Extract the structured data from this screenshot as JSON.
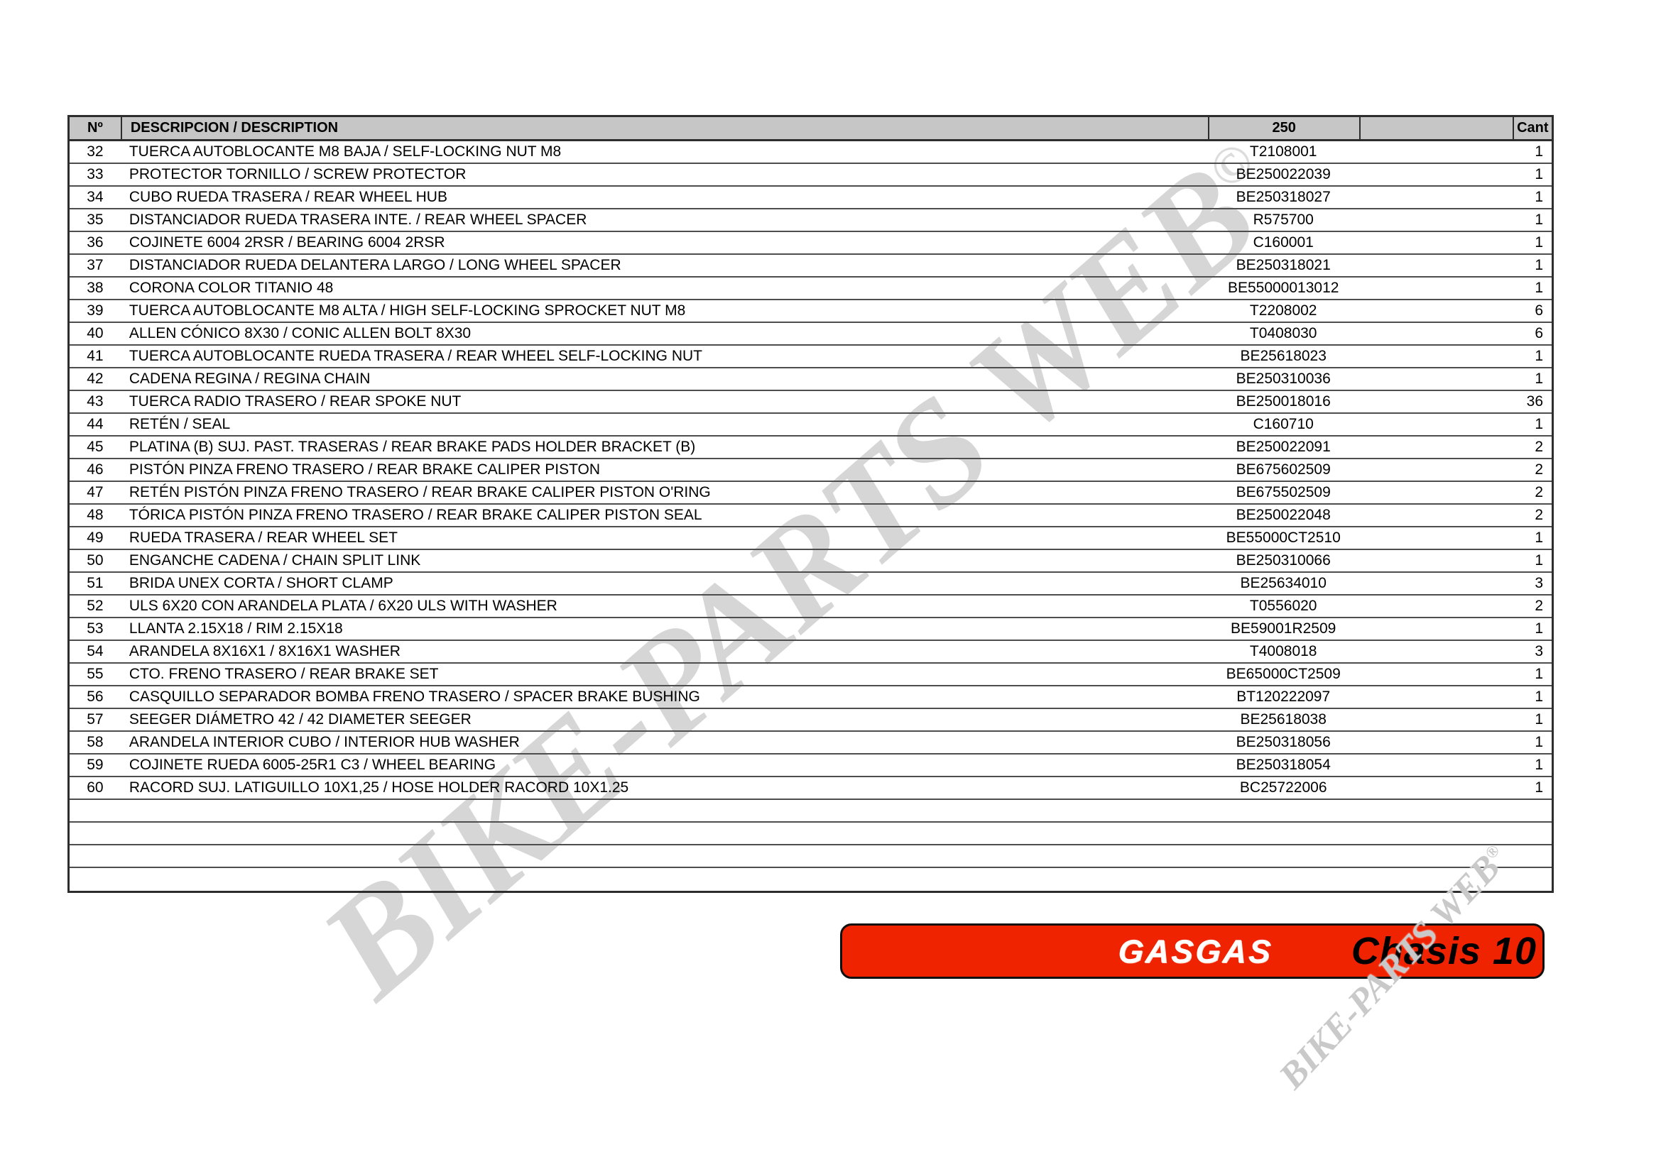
{
  "table": {
    "headers": {
      "num": "Nº",
      "description": "DESCRIPCION / DESCRIPTION",
      "part": "250",
      "extra": "",
      "qty": "Cant"
    },
    "empty_row_count": 4,
    "rows": [
      {
        "num": "32",
        "description": "TUERCA AUTOBLOCANTE M8 BAJA / SELF-LOCKING NUT M8",
        "part": "T2108001",
        "qty": "1"
      },
      {
        "num": "33",
        "description": "PROTECTOR TORNILLO / SCREW PROTECTOR",
        "part": "BE250022039",
        "qty": "1"
      },
      {
        "num": "34",
        "description": "CUBO RUEDA TRASERA / REAR WHEEL HUB",
        "part": "BE250318027",
        "qty": "1"
      },
      {
        "num": "35",
        "description": "DISTANCIADOR RUEDA TRASERA INTE. / REAR WHEEL SPACER",
        "part": "R575700",
        "qty": "1"
      },
      {
        "num": "36",
        "description": "COJINETE 6004 2RSR / BEARING 6004 2RSR",
        "part": "C160001",
        "qty": "1"
      },
      {
        "num": "37",
        "description": "DISTANCIADOR RUEDA DELANTERA LARGO / LONG WHEEL SPACER",
        "part": "BE250318021",
        "qty": "1"
      },
      {
        "num": "38",
        "description": "CORONA COLOR TITANIO 48",
        "part": "BE55000013012",
        "qty": "1"
      },
      {
        "num": "39",
        "description": "TUERCA AUTOBLOCANTE M8 ALTA / HIGH SELF-LOCKING SPROCKET NUT M8",
        "part": "T2208002",
        "qty": "6"
      },
      {
        "num": "40",
        "description": "ALLEN CÓNICO 8X30 / CONIC ALLEN BOLT 8X30",
        "part": "T0408030",
        "qty": "6"
      },
      {
        "num": "41",
        "description": "TUERCA AUTOBLOCANTE RUEDA TRASERA / REAR WHEEL SELF-LOCKING NUT",
        "part": "BE25618023",
        "qty": "1"
      },
      {
        "num": "42",
        "description": "CADENA REGINA / REGINA CHAIN",
        "part": "BE250310036",
        "qty": "1"
      },
      {
        "num": "43",
        "description": "TUERCA RADIO TRASERO / REAR SPOKE NUT",
        "part": "BE250018016",
        "qty": "36"
      },
      {
        "num": "44",
        "description": "RETÉN / SEAL",
        "part": "C160710",
        "qty": "1"
      },
      {
        "num": "45",
        "description": "PLATINA (B) SUJ. PAST. TRASERAS / REAR BRAKE PADS HOLDER BRACKET (B)",
        "part": "BE250022091",
        "qty": "2"
      },
      {
        "num": "46",
        "description": "PISTÓN PINZA FRENO TRASERO / REAR BRAKE CALIPER PISTON",
        "part": "BE675602509",
        "qty": "2"
      },
      {
        "num": "47",
        "description": "RETÉN PISTÓN PINZA FRENO TRASERO / REAR BRAKE CALIPER PISTON O'RING",
        "part": "BE675502509",
        "qty": "2"
      },
      {
        "num": "48",
        "description": "TÓRICA PISTÓN PINZA FRENO TRASERO / REAR BRAKE CALIPER PISTON SEAL",
        "part": "BE250022048",
        "qty": "2"
      },
      {
        "num": "49",
        "description": "RUEDA TRASERA / REAR WHEEL SET",
        "part": "BE55000CT2510",
        "qty": "1"
      },
      {
        "num": "50",
        "description": "ENGANCHE CADENA / CHAIN SPLIT LINK",
        "part": "BE250310066",
        "qty": "1"
      },
      {
        "num": "51",
        "description": "BRIDA UNEX CORTA / SHORT CLAMP",
        "part": "BE25634010",
        "qty": "3"
      },
      {
        "num": "52",
        "description": "ULS 6X20 CON ARANDELA PLATA / 6X20 ULS WITH WASHER",
        "part": "T0556020",
        "qty": "2"
      },
      {
        "num": "53",
        "description": "LLANTA 2.15X18 / RIM 2.15X18",
        "part": "BE59001R2509",
        "qty": "1"
      },
      {
        "num": "54",
        "description": "ARANDELA 8X16X1 / 8X16X1 WASHER",
        "part": "T4008018",
        "qty": "3"
      },
      {
        "num": "55",
        "description": "CTO. FRENO TRASERO / REAR BRAKE SET",
        "part": "BE65000CT2509",
        "qty": "1"
      },
      {
        "num": "56",
        "description": "CASQUILLO SEPARADOR BOMBA FRENO TRASERO / SPACER BRAKE BUSHING",
        "part": "BT120222097",
        "qty": "1"
      },
      {
        "num": "57",
        "description": "SEEGER DIÁMETRO 42 / 42 DIAMETER SEEGER",
        "part": "BE25618038",
        "qty": "1"
      },
      {
        "num": "58",
        "description": "ARANDELA INTERIOR CUBO / INTERIOR HUB WASHER",
        "part": "BE250318056",
        "qty": "1"
      },
      {
        "num": "59",
        "description": "COJINETE RUEDA 6005-25R1 C3 / WHEEL BEARING",
        "part": "BE250318054",
        "qty": "1"
      },
      {
        "num": "60",
        "description": "RACORD SUJ. LATIGUILLO 10X1,25 / HOSE HOLDER RACORD 10X1.25",
        "part": "BC25722006",
        "qty": "1"
      }
    ]
  },
  "watermark": {
    "large_text": "BIKE-PARTS WEB",
    "large_symbol": "©",
    "small_text": "BIKE-PARTS WEB",
    "small_symbol": "®"
  },
  "banner": {
    "brand": "GASGAS",
    "label": "Chasis 10",
    "background_color": "#f02300",
    "brand_color": "#ffffff",
    "label_color": "#000000"
  }
}
